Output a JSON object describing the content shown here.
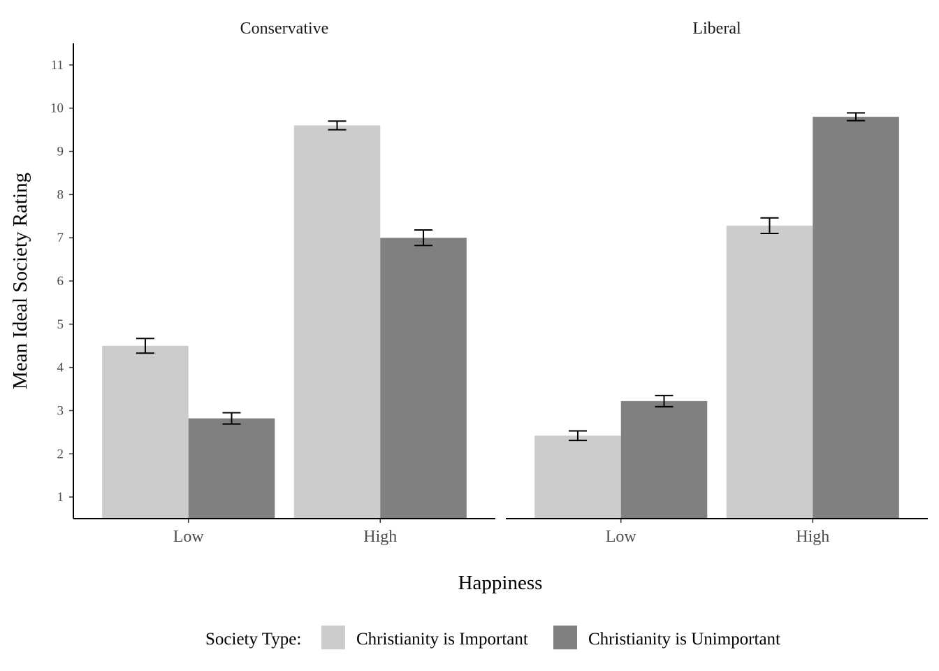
{
  "chart_data": {
    "type": "bar",
    "facets": [
      "Conservative",
      "Liberal"
    ],
    "categories": [
      "Low",
      "High"
    ],
    "xlabel": "Happiness",
    "ylabel": "Mean Ideal Society Rating",
    "ylim": [
      0.5,
      11.5
    ],
    "yticks": [
      1,
      2,
      3,
      4,
      5,
      6,
      7,
      8,
      9,
      10,
      11
    ],
    "grid": false,
    "legend": {
      "title": "Society Type:",
      "position": "bottom"
    },
    "series": [
      {
        "name": "Christianity is Important",
        "color": "#cccccc",
        "values": {
          "Conservative": [
            4.5,
            9.6
          ],
          "Liberal": [
            2.42,
            7.28
          ]
        },
        "error": {
          "Conservative": [
            0.17,
            0.1
          ],
          "Liberal": [
            0.11,
            0.18
          ]
        }
      },
      {
        "name": "Christianity is Unimportant",
        "color": "#808080",
        "values": {
          "Conservative": [
            2.82,
            7.0
          ],
          "Liberal": [
            3.22,
            9.8
          ]
        },
        "error": {
          "Conservative": [
            0.13,
            0.18
          ],
          "Liberal": [
            0.13,
            0.09
          ]
        }
      }
    ]
  }
}
